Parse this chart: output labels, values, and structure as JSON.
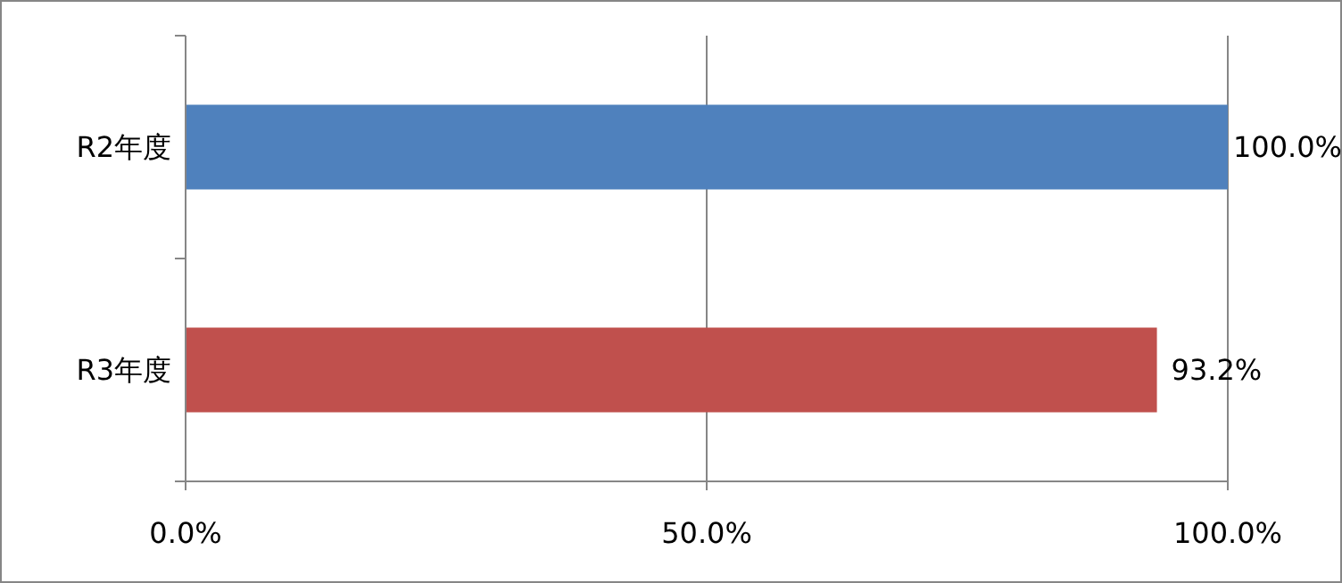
{
  "chart_data": {
    "type": "bar",
    "orientation": "horizontal",
    "categories": [
      "R2年度",
      "R3年度"
    ],
    "values": [
      100.0,
      93.2
    ],
    "colors": [
      "#4f81bd",
      "#c0504d"
    ],
    "value_labels": [
      "100.0%",
      "93.2%"
    ],
    "xlim": [
      0,
      100
    ],
    "xticks": [
      {
        "value": 0,
        "label": "0.0%"
      },
      {
        "value": 50,
        "label": "50.0%"
      },
      {
        "value": 100,
        "label": "100.0%"
      }
    ],
    "grid": "x"
  }
}
